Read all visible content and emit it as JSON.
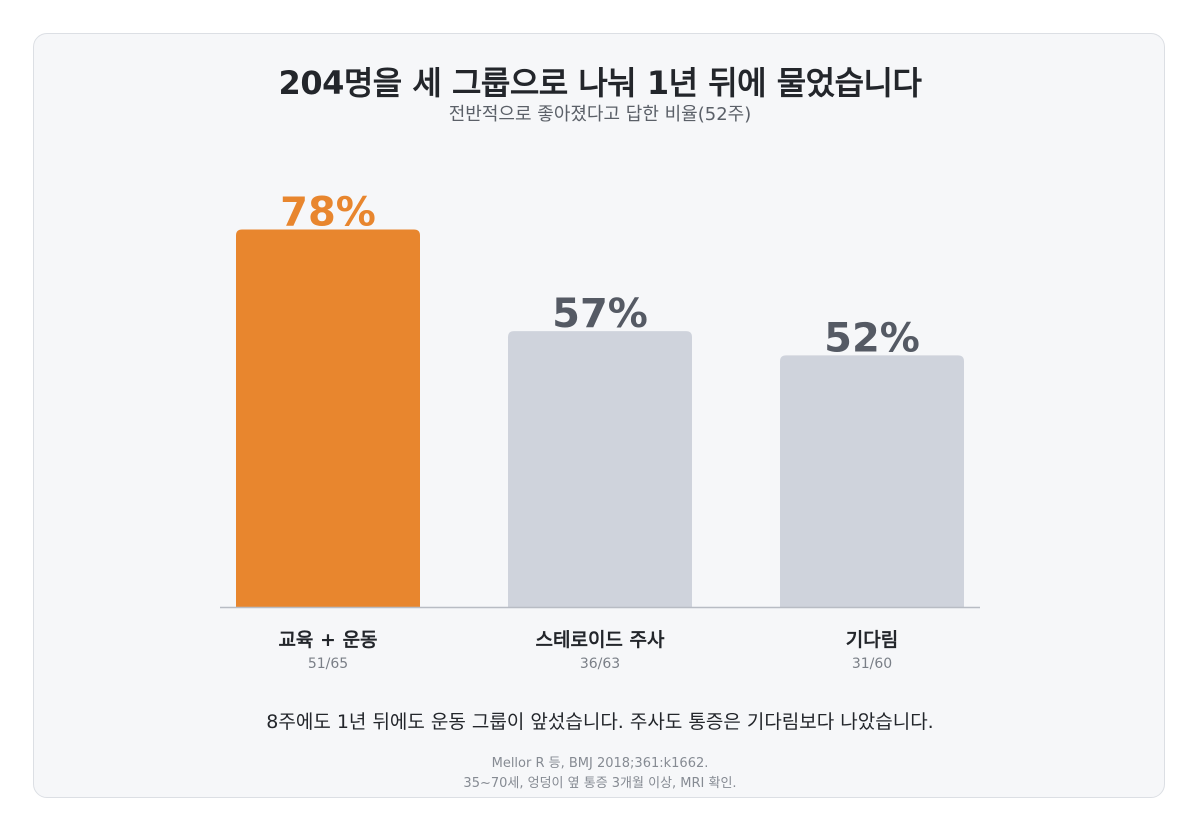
{
  "title": "204명을 세 그룹으로 나눠 1년 뒤에 물었습니다",
  "subtitle": "전반적으로 좋아졌다고 답한 비율(52주)",
  "colors": {
    "highlight": "#e8862e",
    "muted_bar": "#cfd3dc",
    "muted_label": "#555a64",
    "baseline": "#b8bcc4"
  },
  "chart_data": {
    "type": "bar",
    "categories": [
      "교육 + 운동",
      "스테로이드 주사",
      "기다림"
    ],
    "values": [
      78,
      57,
      52
    ],
    "value_labels": [
      "78%",
      "57%",
      "52%"
    ],
    "counts": [
      "51/65",
      "36/63",
      "31/60"
    ],
    "highlight_index": 0,
    "ylim": [
      0,
      100
    ],
    "grid": false,
    "legend": "none"
  },
  "note": "8주에도 1년 뒤에도 운동 그룹이 앞섰습니다. 주사도 통증은 기다림보다 나았습니다.",
  "source": {
    "line1": "Mellor R 등, BMJ 2018;361:k1662.",
    "line2": "35~70세, 엉덩이 옆 통증 3개월 이상, MRI 확인."
  }
}
